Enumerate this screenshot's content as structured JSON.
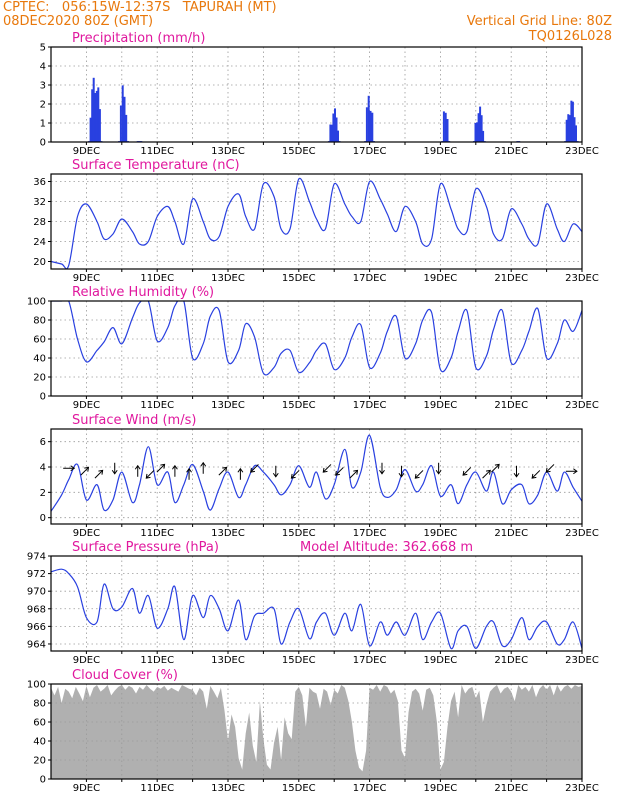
{
  "header": {
    "line1_left": "CPTEC:   056:15W-12:37S   TAPURAH (MT)",
    "line2_left": "08DEC2020 80Z (GMT)",
    "line1_right": "Vertical Grid Line: 80Z",
    "line2_right": "TQ0126L028"
  },
  "colors": {
    "header": "#e8780c",
    "title": "#e0189e",
    "series": "#2940e0",
    "cloud": "#b0b0b0",
    "grid": "#9a9a9a"
  },
  "chart_data": [
    {
      "type": "bar",
      "title": "Precipitation (mm/h)",
      "x_labels": [
        "9DEC",
        "11DEC",
        "13DEC",
        "15DEC",
        "17DEC",
        "19DEC",
        "21DEC",
        "23DEC"
      ],
      "y_ticks": [
        0,
        1,
        2,
        3,
        4,
        5
      ],
      "ylim": [
        0,
        5
      ],
      "grid": true,
      "bursts": [
        {
          "day": 9.25,
          "width": 0.35,
          "peak": 3.7
        },
        {
          "day": 10.05,
          "width": 0.25,
          "peak": 3.1
        },
        {
          "day": 10.5,
          "width": 0.1,
          "peak": 0.05
        },
        {
          "day": 16.0,
          "width": 0.3,
          "peak": 1.8
        },
        {
          "day": 17.0,
          "width": 0.25,
          "peak": 2.7
        },
        {
          "day": 19.15,
          "width": 0.2,
          "peak": 2.1
        },
        {
          "day": 20.1,
          "width": 0.3,
          "peak": 1.9
        },
        {
          "day": 21.2,
          "width": 0.05,
          "peak": 0.8
        },
        {
          "day": 22.7,
          "width": 0.35,
          "peak": 2.3
        }
      ]
    },
    {
      "type": "line",
      "title": "Surface Temperature (nC)",
      "x_labels": [
        "9DEC",
        "11DEC",
        "13DEC",
        "15DEC",
        "17DEC",
        "19DEC",
        "21DEC",
        "23DEC"
      ],
      "y_ticks": [
        20,
        24,
        28,
        32,
        36
      ],
      "ylim": [
        18.5,
        37.5
      ],
      "grid": true,
      "x": [
        8.0,
        8.3,
        8.5,
        8.75,
        9.0,
        9.3,
        9.5,
        9.75,
        10.0,
        10.3,
        10.5,
        10.75,
        11.0,
        11.3,
        11.5,
        11.75,
        12.0,
        12.3,
        12.5,
        12.75,
        13.0,
        13.3,
        13.5,
        13.75,
        14.0,
        14.3,
        14.5,
        14.75,
        15.0,
        15.3,
        15.5,
        15.75,
        16.0,
        16.3,
        16.5,
        16.75,
        17.0,
        17.3,
        17.5,
        17.75,
        18.0,
        18.3,
        18.5,
        18.75,
        19.0,
        19.3,
        19.5,
        19.75,
        20.0,
        20.3,
        20.5,
        20.75,
        21.0,
        21.3,
        21.5,
        21.75,
        22.0,
        22.3,
        22.5,
        22.75,
        23.0
      ],
      "y": [
        20,
        19.5,
        19.2,
        29,
        31.5,
        28,
        24.5,
        25.5,
        28.5,
        26,
        23.5,
        24,
        29,
        31,
        28,
        23.5,
        32.5,
        28,
        24.5,
        25,
        31,
        33.5,
        29,
        26.5,
        35.5,
        33,
        26.5,
        26.5,
        36.5,
        32,
        28.5,
        26.5,
        35.5,
        31.5,
        29,
        28,
        36,
        32.5,
        29.5,
        26,
        31,
        28,
        23.5,
        24.5,
        35.5,
        30.5,
        26.5,
        26,
        34.5,
        31,
        25.5,
        24.5,
        30.5,
        27.5,
        24.5,
        23.5,
        31.5,
        26.5,
        24,
        27.5,
        26
      ]
    },
    {
      "type": "line",
      "title": "Relative Humidity (%)",
      "x_labels": [
        "9DEC",
        "11DEC",
        "13DEC",
        "15DEC",
        "17DEC",
        "19DEC",
        "21DEC",
        "23DEC"
      ],
      "y_ticks": [
        0,
        20,
        40,
        60,
        80,
        100
      ],
      "ylim": [
        0,
        100
      ],
      "grid": true,
      "x": [
        8.0,
        8.3,
        8.5,
        8.75,
        9.0,
        9.3,
        9.5,
        9.75,
        10.0,
        10.3,
        10.5,
        10.75,
        11.0,
        11.3,
        11.5,
        11.75,
        12.0,
        12.3,
        12.5,
        12.75,
        13.0,
        13.3,
        13.5,
        13.75,
        14.0,
        14.3,
        14.5,
        14.75,
        15.0,
        15.3,
        15.5,
        15.75,
        16.0,
        16.3,
        16.5,
        16.75,
        17.0,
        17.3,
        17.5,
        17.75,
        18.0,
        18.3,
        18.5,
        18.75,
        19.0,
        19.3,
        19.5,
        19.75,
        20.0,
        20.3,
        20.5,
        20.75,
        21.0,
        21.3,
        21.5,
        21.75,
        22.0,
        22.3,
        22.5,
        22.75,
        23.0
      ],
      "y": [
        100,
        100,
        100,
        60,
        36,
        48,
        57,
        72,
        55,
        82,
        98,
        100,
        58,
        72,
        95,
        100,
        40,
        55,
        84,
        90,
        36,
        48,
        76,
        62,
        24,
        30,
        45,
        48,
        25,
        35,
        48,
        55,
        28,
        40,
        62,
        75,
        30,
        45,
        68,
        84,
        40,
        55,
        80,
        88,
        28,
        40,
        68,
        90,
        30,
        42,
        70,
        90,
        35,
        48,
        68,
        92,
        40,
        55,
        80,
        68,
        90
      ]
    },
    {
      "type": "line",
      "title": "Surface Wind (m/s)",
      "x_labels": [
        "9DEC",
        "11DEC",
        "13DEC",
        "15DEC",
        "17DEC",
        "19DEC",
        "21DEC",
        "23DEC"
      ],
      "y_ticks": [
        0,
        2,
        4,
        6
      ],
      "ylim": [
        -0.5,
        7
      ],
      "grid": true,
      "x": [
        8.0,
        8.3,
        8.5,
        8.75,
        9.0,
        9.3,
        9.5,
        9.75,
        10.0,
        10.3,
        10.5,
        10.75,
        11.0,
        11.3,
        11.5,
        11.75,
        12.0,
        12.3,
        12.5,
        12.75,
        13.0,
        13.3,
        13.5,
        13.75,
        14.0,
        14.3,
        14.5,
        14.75,
        15.0,
        15.3,
        15.5,
        15.75,
        16.0,
        16.3,
        16.5,
        16.75,
        17.0,
        17.3,
        17.5,
        17.75,
        18.0,
        18.3,
        18.5,
        18.75,
        19.0,
        19.3,
        19.5,
        19.75,
        20.0,
        20.3,
        20.5,
        20.75,
        21.0,
        21.3,
        21.5,
        21.75,
        22.0,
        22.3,
        22.5,
        22.75,
        23.0
      ],
      "y": [
        0.5,
        1.8,
        3,
        4.2,
        1.4,
        2.6,
        0.6,
        1.4,
        3.6,
        1.2,
        2.6,
        5.6,
        2.6,
        3.6,
        1.2,
        2.6,
        4.2,
        2.1,
        0.6,
        2.3,
        3.6,
        1.6,
        2.6,
        4.1,
        3.6,
        2.6,
        1.8,
        2.6,
        4.1,
        2.4,
        3.6,
        1.5,
        2.6,
        5.4,
        2.4,
        3.6,
        6.5,
        2.4,
        1.6,
        2.2,
        3.8,
        2.1,
        2.6,
        4.1,
        1.7,
        2.6,
        1.1,
        2.6,
        3.6,
        2.1,
        3.6,
        1.1,
        2.2,
        2.6,
        1.1,
        1.8,
        3.6,
        2.1,
        3.6,
        2.4,
        1.3
      ],
      "arrows": [
        {
          "day": 8.5,
          "dir": "e"
        },
        {
          "day": 8.95,
          "dir": "ne"
        },
        {
          "day": 9.35,
          "dir": "ne"
        },
        {
          "day": 9.8,
          "dir": "s"
        },
        {
          "day": 10.45,
          "dir": "n"
        },
        {
          "day": 10.8,
          "dir": "sw"
        },
        {
          "day": 11.1,
          "dir": "ne"
        },
        {
          "day": 11.5,
          "dir": "n"
        },
        {
          "day": 11.9,
          "dir": "n"
        },
        {
          "day": 12.3,
          "dir": "n"
        },
        {
          "day": 12.85,
          "dir": "ne"
        },
        {
          "day": 13.35,
          "dir": "n"
        },
        {
          "day": 13.75,
          "dir": "sw"
        },
        {
          "day": 14.35,
          "dir": "s"
        },
        {
          "day": 14.9,
          "dir": "sw"
        },
        {
          "day": 15.8,
          "dir": "sw"
        },
        {
          "day": 16.15,
          "dir": "sw"
        },
        {
          "day": 16.55,
          "dir": "ne"
        },
        {
          "day": 17.35,
          "dir": "s"
        },
        {
          "day": 17.9,
          "dir": "s"
        },
        {
          "day": 18.4,
          "dir": "sw"
        },
        {
          "day": 18.95,
          "dir": "s"
        },
        {
          "day": 19.75,
          "dir": "sw"
        },
        {
          "day": 20.3,
          "dir": "ne"
        },
        {
          "day": 20.55,
          "dir": "ne"
        },
        {
          "day": 21.15,
          "dir": "s"
        },
        {
          "day": 21.7,
          "dir": "sw"
        },
        {
          "day": 22.1,
          "dir": "sw"
        },
        {
          "day": 22.7,
          "dir": "e"
        }
      ]
    },
    {
      "type": "line",
      "title": "Surface Pressure (hPa)",
      "annotation": "Model Altitude: 362.668 m",
      "x_labels": [
        "9DEC",
        "11DEC",
        "13DEC",
        "15DEC",
        "17DEC",
        "19DEC",
        "21DEC",
        "23DEC"
      ],
      "y_ticks": [
        964,
        966,
        968,
        970,
        972,
        974
      ],
      "ylim": [
        963.2,
        974
      ],
      "grid": true,
      "x": [
        8.0,
        8.3,
        8.5,
        8.75,
        9.0,
        9.3,
        9.5,
        9.75,
        10.0,
        10.3,
        10.5,
        10.75,
        11.0,
        11.3,
        11.5,
        11.75,
        12.0,
        12.3,
        12.5,
        12.75,
        13.0,
        13.3,
        13.5,
        13.75,
        14.0,
        14.3,
        14.5,
        14.75,
        15.0,
        15.3,
        15.5,
        15.75,
        16.0,
        16.3,
        16.5,
        16.75,
        17.0,
        17.3,
        17.5,
        17.75,
        18.0,
        18.3,
        18.5,
        18.75,
        19.0,
        19.3,
        19.5,
        19.75,
        20.0,
        20.3,
        20.5,
        20.75,
        21.0,
        21.3,
        21.5,
        21.75,
        22.0,
        22.3,
        22.5,
        22.75,
        23.0
      ],
      "y": [
        972.2,
        972.5,
        972,
        970.5,
        967,
        966.5,
        970.8,
        968,
        968.2,
        970.3,
        967.5,
        969.5,
        965.8,
        968,
        970.5,
        964.5,
        969.5,
        967,
        969.5,
        968,
        965.5,
        969,
        964.5,
        967.2,
        967.5,
        968,
        964,
        966.5,
        968,
        964.6,
        966.5,
        967.5,
        965,
        967.5,
        965.5,
        968.5,
        963.8,
        966.5,
        965,
        966.5,
        965,
        967.5,
        964.5,
        966.5,
        967.5,
        963.5,
        965.5,
        966,
        963.5,
        966,
        966.5,
        963.8,
        964.5,
        967,
        964.5,
        966,
        966.5,
        964,
        964.5,
        966.5,
        963.5
      ]
    },
    {
      "type": "area",
      "title": "Cloud Cover (%)",
      "x_labels": [
        "9DEC",
        "11DEC",
        "13DEC",
        "15DEC",
        "17DEC",
        "19DEC",
        "21DEC",
        "23DEC"
      ],
      "y_ticks": [
        0,
        20,
        40,
        60,
        80,
        100
      ],
      "ylim": [
        0,
        100
      ],
      "grid": true,
      "x": [
        8.0,
        8.1,
        8.2,
        8.3,
        8.4,
        8.5,
        8.6,
        8.7,
        8.8,
        8.9,
        9.0,
        9.1,
        9.2,
        9.3,
        9.4,
        9.5,
        9.6,
        9.7,
        9.8,
        9.9,
        10.0,
        10.1,
        10.2,
        10.3,
        10.4,
        10.5,
        10.6,
        10.7,
        10.8,
        10.9,
        11.0,
        11.1,
        11.2,
        11.3,
        11.4,
        11.5,
        11.6,
        11.7,
        11.8,
        11.9,
        12.0,
        12.1,
        12.2,
        12.3,
        12.4,
        12.5,
        12.6,
        12.7,
        12.8,
        12.9,
        13.0,
        13.1,
        13.2,
        13.3,
        13.4,
        13.5,
        13.6,
        13.7,
        13.8,
        13.9,
        14.0,
        14.1,
        14.2,
        14.3,
        14.4,
        14.5,
        14.6,
        14.7,
        14.8,
        14.9,
        15.0,
        15.1,
        15.2,
        15.3,
        15.4,
        15.5,
        15.6,
        15.7,
        15.8,
        15.9,
        16.0,
        16.1,
        16.2,
        16.3,
        16.4,
        16.5,
        16.6,
        16.7,
        16.8,
        16.9,
        17.0,
        17.1,
        17.2,
        17.3,
        17.4,
        17.5,
        17.6,
        17.7,
        17.8,
        17.9,
        18.0,
        18.1,
        18.2,
        18.3,
        18.4,
        18.5,
        18.6,
        18.7,
        18.8,
        18.9,
        19.0,
        19.1,
        19.2,
        19.3,
        19.4,
        19.5,
        19.6,
        19.7,
        19.8,
        19.9,
        20.0,
        20.1,
        20.2,
        20.3,
        20.4,
        20.5,
        20.6,
        20.7,
        20.8,
        20.9,
        21.0,
        21.1,
        21.2,
        21.3,
        21.4,
        21.5,
        21.6,
        21.7,
        21.8,
        21.9,
        22.0,
        22.1,
        22.2,
        22.3,
        22.4,
        22.5,
        22.6,
        22.7,
        22.8,
        22.9,
        23.0
      ],
      "y": [
        96,
        88,
        97,
        80,
        95,
        92,
        85,
        97,
        90,
        82,
        98,
        86,
        96,
        99,
        92,
        95,
        99,
        88,
        93,
        97,
        99,
        94,
        98,
        96,
        90,
        97,
        94,
        99,
        95,
        92,
        97,
        95,
        98,
        93,
        96,
        94,
        92,
        99,
        97,
        95,
        94,
        88,
        96,
        92,
        74,
        98,
        92,
        85,
        96,
        72,
        40,
        68,
        55,
        22,
        10,
        48,
        70,
        35,
        18,
        82,
        42,
        15,
        10,
        38,
        55,
        20,
        65,
        48,
        42,
        92,
        97,
        88,
        55,
        96,
        92,
        90,
        74,
        95,
        92,
        78,
        94,
        90,
        99,
        96,
        82,
        60,
        30,
        12,
        8,
        30,
        96,
        94,
        99,
        92,
        99,
        97,
        90,
        94,
        82,
        30,
        22,
        70,
        92,
        95,
        90,
        72,
        94,
        96,
        88,
        60,
        10,
        18,
        55,
        82,
        92,
        65,
        99,
        90,
        95,
        97,
        85,
        93,
        60,
        78,
        92,
        96,
        99,
        90,
        95,
        97,
        92,
        82,
        99,
        94,
        97,
        92,
        99,
        86,
        95,
        99,
        94,
        99,
        88,
        99,
        92,
        97,
        99,
        95,
        99,
        97,
        98
      ]
    }
  ]
}
